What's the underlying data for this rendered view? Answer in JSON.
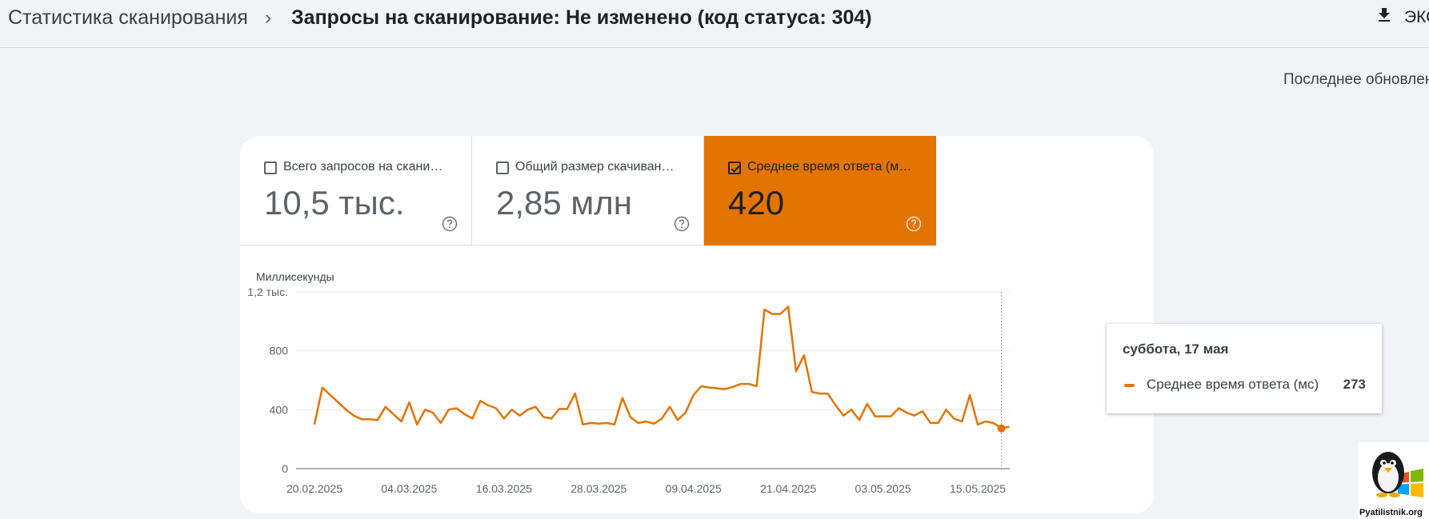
{
  "header": {
    "breadcrumb_root": "Статистика сканирования",
    "breadcrumb_separator": "›",
    "breadcrumb_current": "Запросы на сканирование: Не изменено (код статуса: 304)",
    "export_label": "ЭКС",
    "last_update": "Последнее обновлен"
  },
  "metrics": [
    {
      "label": "Всего запросов на скани…",
      "value": "10,5 тыс.",
      "checked": false
    },
    {
      "label": "Общий размер скачиван…",
      "value": "2,85 млн",
      "checked": false
    },
    {
      "label": "Среднее время ответа (м…",
      "value": "420",
      "checked": true
    }
  ],
  "colors": {
    "accent": "#e37400",
    "background": "#f1f3f7",
    "card": "#ffffff"
  },
  "chart_data": {
    "type": "line",
    "ylabel": "Миллисекунды",
    "ylim": [
      0,
      1200
    ],
    "yticks": [
      {
        "value": 0,
        "label": "0"
      },
      {
        "value": 400,
        "label": "400"
      },
      {
        "value": 800,
        "label": "800"
      },
      {
        "value": 1200,
        "label": "1,2 тыс."
      }
    ],
    "xticks": [
      "20.02.2025",
      "04.03.2025",
      "16.03.2025",
      "28.03.2025",
      "09.04.2025",
      "21.04.2025",
      "03.05.2025",
      "15.05.2025"
    ],
    "x_start": "2025-02-20",
    "x_end": "2025-05-18",
    "series": [
      {
        "name": "Среднее время ответа (мс)",
        "color": "#e37400",
        "values": [
          300,
          550,
          500,
          450,
          400,
          360,
          335,
          335,
          330,
          420,
          370,
          320,
          450,
          300,
          400,
          380,
          310,
          400,
          410,
          370,
          340,
          460,
          430,
          410,
          340,
          400,
          360,
          400,
          420,
          350,
          340,
          405,
          405,
          510,
          300,
          310,
          305,
          310,
          300,
          480,
          350,
          310,
          320,
          305,
          340,
          420,
          330,
          380,
          500,
          560,
          550,
          545,
          540,
          555,
          575,
          575,
          560,
          1080,
          1050,
          1050,
          1100,
          660,
          770,
          520,
          510,
          510,
          430,
          360,
          400,
          330,
          440,
          355,
          355,
          355,
          410,
          380,
          360,
          390,
          310,
          310,
          400,
          340,
          320,
          500,
          300,
          320,
          310,
          273,
          285
        ]
      }
    ],
    "highlight": {
      "date_label": "суббота, 17 мая",
      "series_label": "Среднее время ответа (мс)",
      "value_label": "273",
      "index": 87
    }
  },
  "logo": {
    "text": "Pyatilistnik.org"
  }
}
